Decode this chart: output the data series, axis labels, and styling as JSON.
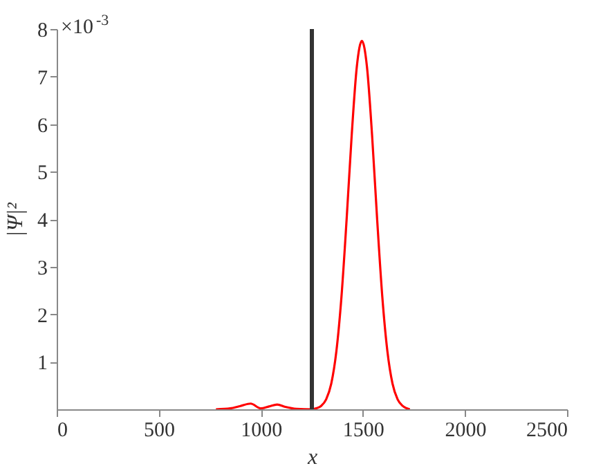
{
  "chart_data": {
    "type": "line",
    "xlabel": "x",
    "ylabel": "|Ψ|²",
    "annotations": [
      "×10$^{-3}$"
    ],
    "x": [
      780,
      850,
      900,
      950,
      1000,
      1040,
      1080,
      1120,
      1175,
      1250,
      1270,
      1295,
      1320,
      1345,
      1370,
      1395,
      1420,
      1445,
      1470,
      1495,
      1520,
      1545,
      1570,
      1595,
      1620,
      1645,
      1670,
      1695,
      1730
    ],
    "series": [
      {
        "color": "#ff0000",
        "values": [
          0,
          0.02,
          0.07,
          0.12,
          0.02,
          0.06,
          0.1,
          0.05,
          0.01,
          0,
          0.02,
          0.07,
          0.21,
          0.54,
          1.22,
          2.37,
          3.98,
          5.76,
          7.2,
          7.75,
          7.2,
          5.76,
          3.98,
          2.37,
          1.22,
          0.54,
          0.21,
          0.07,
          0
        ]
      }
    ],
    "ref_lines": [
      {
        "axis": "x",
        "value": 1250,
        "color": "#333333"
      }
    ],
    "xlim": [
      0,
      2500
    ],
    "xticks": [
      0,
      500,
      1000,
      1500,
      2000,
      2500
    ],
    "ylim": [
      0,
      8
    ],
    "yticks": [
      1,
      2,
      3,
      4,
      5,
      6,
      7,
      8
    ],
    "grid": false
  }
}
